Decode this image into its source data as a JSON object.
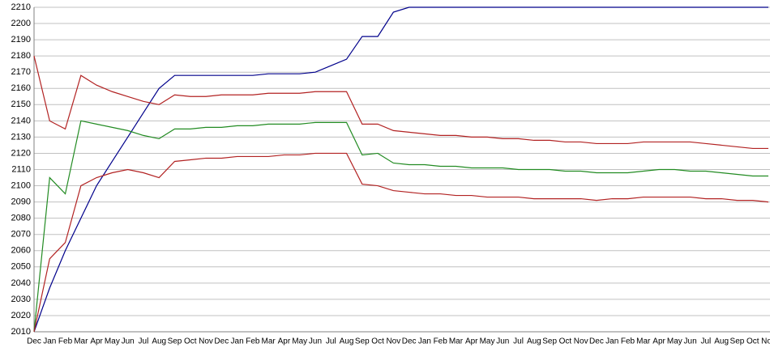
{
  "chart_data": {
    "type": "line",
    "categories": [
      "Dec",
      "Jan",
      "Feb",
      "Mar",
      "Apr",
      "May",
      "Jun",
      "Jul",
      "Aug",
      "Sep",
      "Oct",
      "Nov",
      "Dec",
      "Jan",
      "Feb",
      "Mar",
      "Apr",
      "May",
      "Jun",
      "Jul",
      "Aug",
      "Sep",
      "Oct",
      "Nov",
      "Dec",
      "Jan",
      "Feb",
      "Mar",
      "Apr",
      "May",
      "Jun",
      "Jul",
      "Aug",
      "Sep",
      "Oct",
      "Nov",
      "Dec",
      "Jan",
      "Feb",
      "Mar",
      "Apr",
      "May",
      "Jun",
      "Jul",
      "Aug",
      "Sep",
      "Oct",
      "Nov"
    ],
    "series": [
      {
        "color": "#00008b",
        "values": [
          2010,
          2037,
          2060,
          2080,
          2100,
          2115,
          2130,
          2145,
          2160,
          2168,
          2168,
          2168,
          2168,
          2168,
          2168,
          2169,
          2169,
          2169,
          2170,
          2174,
          2178,
          2192,
          2192,
          2207,
          2210,
          2210,
          2210,
          2210,
          2210,
          2210,
          2210,
          2210,
          2210,
          2210,
          2210,
          2210,
          2210,
          2210,
          2210,
          2210,
          2210,
          2210,
          2210,
          2210,
          2210,
          2210,
          2210,
          2210
        ]
      },
      {
        "color": "#b22222",
        "values": [
          2180,
          2140,
          2135,
          2168,
          2162,
          2158,
          2155,
          2152,
          2150,
          2156,
          2155,
          2155,
          2156,
          2156,
          2156,
          2157,
          2157,
          2157,
          2158,
          2158,
          2158,
          2138,
          2138,
          2134,
          2133,
          2132,
          2131,
          2131,
          2130,
          2130,
          2129,
          2129,
          2128,
          2128,
          2127,
          2127,
          2126,
          2126,
          2126,
          2127,
          2127,
          2127,
          2127,
          2126,
          2125,
          2124,
          2123,
          2123
        ]
      },
      {
        "color": "#228b22",
        "values": [
          2010,
          2105,
          2095,
          2140,
          2138,
          2136,
          2134,
          2131,
          2129,
          2135,
          2135,
          2136,
          2136,
          2137,
          2137,
          2138,
          2138,
          2138,
          2139,
          2139,
          2139,
          2119,
          2120,
          2114,
          2113,
          2113,
          2112,
          2112,
          2111,
          2111,
          2111,
          2110,
          2110,
          2110,
          2109,
          2109,
          2108,
          2108,
          2108,
          2109,
          2110,
          2110,
          2109,
          2109,
          2108,
          2107,
          2106,
          2106
        ]
      },
      {
        "color": "#b22222",
        "values": [
          2010,
          2055,
          2065,
          2100,
          2105,
          2108,
          2110,
          2108,
          2105,
          2115,
          2116,
          2117,
          2117,
          2118,
          2118,
          2118,
          2119,
          2119,
          2120,
          2120,
          2120,
          2101,
          2100,
          2097,
          2096,
          2095,
          2095,
          2094,
          2094,
          2093,
          2093,
          2093,
          2092,
          2092,
          2092,
          2092,
          2091,
          2092,
          2092,
          2093,
          2093,
          2093,
          2093,
          2092,
          2092,
          2091,
          2091,
          2090
        ]
      }
    ],
    "ylim": [
      2010,
      2210
    ],
    "yticks": [
      2010,
      2020,
      2030,
      2040,
      2050,
      2060,
      2070,
      2080,
      2090,
      2100,
      2110,
      2120,
      2130,
      2140,
      2150,
      2160,
      2170,
      2180,
      2190,
      2200,
      2210
    ],
    "grid": true
  }
}
